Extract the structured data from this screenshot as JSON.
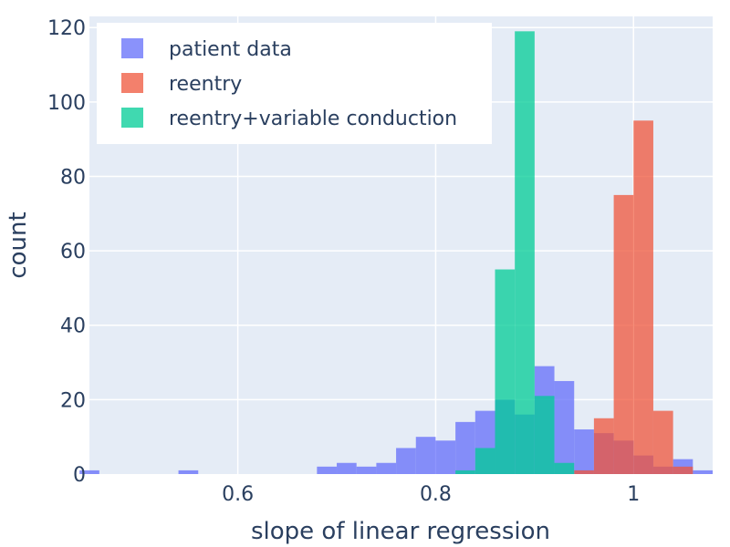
{
  "chart_data": {
    "type": "bar",
    "subtype": "overlaid-histogram",
    "title": "",
    "xlabel": "slope of linear regression",
    "ylabel": "count",
    "xlim": [
      0.45,
      1.08
    ],
    "ylim": [
      0,
      123
    ],
    "xticks": [
      0.6,
      0.8,
      1
    ],
    "xtick_labels": [
      "0.6",
      "0.8",
      "1"
    ],
    "yticks": [
      0,
      20,
      40,
      60,
      80,
      100,
      120
    ],
    "ytick_labels": [
      "0",
      "20",
      "40",
      "60",
      "80",
      "100",
      "120"
    ],
    "grid": true,
    "legend_position": "top-left",
    "plot_background": "#e5ecf6",
    "bar_opacity": 0.75,
    "series": [
      {
        "name": "patient data",
        "color": "#636efa",
        "bin_width": 0.02,
        "bins": [
          {
            "x0": 0.44,
            "count": 1
          },
          {
            "x0": 0.54,
            "count": 1
          },
          {
            "x0": 0.68,
            "count": 2
          },
          {
            "x0": 0.7,
            "count": 3
          },
          {
            "x0": 0.72,
            "count": 2
          },
          {
            "x0": 0.74,
            "count": 3
          },
          {
            "x0": 0.76,
            "count": 7
          },
          {
            "x0": 0.78,
            "count": 10
          },
          {
            "x0": 0.8,
            "count": 9
          },
          {
            "x0": 0.82,
            "count": 14
          },
          {
            "x0": 0.84,
            "count": 17
          },
          {
            "x0": 0.86,
            "count": 20
          },
          {
            "x0": 0.88,
            "count": 16
          },
          {
            "x0": 0.9,
            "count": 29
          },
          {
            "x0": 0.92,
            "count": 25
          },
          {
            "x0": 0.94,
            "count": 12
          },
          {
            "x0": 0.96,
            "count": 11
          },
          {
            "x0": 0.98,
            "count": 9
          },
          {
            "x0": 1.0,
            "count": 5
          },
          {
            "x0": 1.02,
            "count": 2
          },
          {
            "x0": 1.04,
            "count": 4
          },
          {
            "x0": 1.06,
            "count": 1
          }
        ]
      },
      {
        "name": "reentry",
        "color": "#ef553b",
        "bin_width": 0.02,
        "bins": [
          {
            "x0": 0.94,
            "count": 1
          },
          {
            "x0": 0.96,
            "count": 15
          },
          {
            "x0": 0.98,
            "count": 75
          },
          {
            "x0": 1.0,
            "count": 95
          },
          {
            "x0": 1.02,
            "count": 17
          },
          {
            "x0": 1.04,
            "count": 2
          }
        ]
      },
      {
        "name": "reentry+variable conduction",
        "color": "#00cc96",
        "bin_width": 0.02,
        "bins": [
          {
            "x0": 0.82,
            "count": 1
          },
          {
            "x0": 0.84,
            "count": 7
          },
          {
            "x0": 0.86,
            "count": 55
          },
          {
            "x0": 0.88,
            "count": 119
          },
          {
            "x0": 0.9,
            "count": 21
          },
          {
            "x0": 0.92,
            "count": 3
          }
        ]
      }
    ]
  }
}
